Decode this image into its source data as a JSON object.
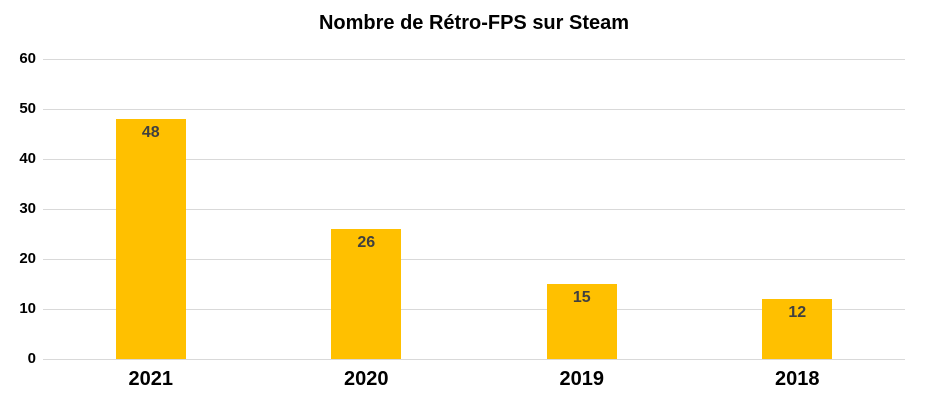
{
  "chart": {
    "title": "Nombre de Rétro-FPS sur Steam"
  },
  "chart_data": {
    "type": "bar",
    "title": "Nombre de Rétro-FPS sur Steam",
    "categories": [
      "2021",
      "2020",
      "2019",
      "2018"
    ],
    "values": [
      48,
      26,
      15,
      12
    ],
    "xlabel": "",
    "ylabel": "",
    "ylim": [
      0,
      60
    ],
    "yticks": [
      0,
      10,
      20,
      30,
      40,
      50,
      60
    ],
    "grid": true,
    "legend": false,
    "data_labels": [
      "48",
      "26",
      "15",
      "12"
    ],
    "data_label_position": "inside-end",
    "colors": {
      "bar": "#FFC000",
      "data_label": "#404040",
      "gridline": "#D9D9D9",
      "axis_text": "#000000",
      "title_text": "#000000",
      "background": "#FFFFFF"
    }
  }
}
